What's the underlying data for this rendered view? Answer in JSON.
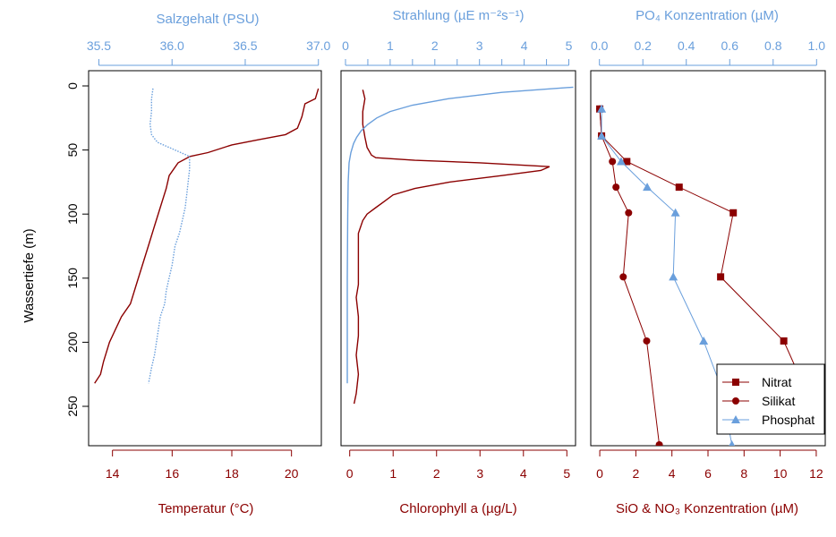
{
  "colors": {
    "red": "#8B0000",
    "blue": "#6A9FDC",
    "black": "#000000"
  },
  "chart_data": [
    {
      "type": "line",
      "panel": "temperature-salinity",
      "ylabel": "Wassertiefe (m)",
      "y_ticks": [
        0,
        50,
        100,
        150,
        200,
        250
      ],
      "ylim": [
        0,
        280
      ],
      "y_reversed": true,
      "bottom_axis": {
        "label": "Temperatur (°C)",
        "range": [
          13.2,
          21.0
        ],
        "ticks": [
          14,
          16,
          18,
          20
        ]
      },
      "top_axis": {
        "label": "Salzgehalt (PSU)",
        "range": [
          35.43,
          37.02
        ],
        "ticks": [
          "35.5",
          "36.0",
          "36.5",
          "37.0"
        ]
      },
      "series": [
        {
          "axis": "bottom",
          "color_key": "red",
          "x": [
            20.9,
            20.8,
            20.45,
            20.35,
            20.2,
            19.8,
            18.9,
            18.0,
            17.2,
            16.6,
            16.2,
            15.9,
            15.8,
            15.6,
            15.4,
            15.2,
            15.0,
            14.8,
            14.6,
            14.3,
            14.1,
            13.9,
            13.7,
            13.6,
            13.4
          ],
          "y": [
            2,
            10,
            14,
            24,
            33,
            38,
            42,
            46,
            52,
            55,
            60,
            70,
            80,
            95,
            110,
            125,
            140,
            155,
            170,
            180,
            190,
            200,
            215,
            225,
            232
          ]
        },
        {
          "axis": "top",
          "color_key": "blue",
          "x": [
            35.87,
            35.86,
            35.86,
            35.85,
            35.86,
            35.9,
            36.02,
            36.12,
            36.12,
            36.11,
            36.1,
            36.09,
            36.07,
            36.05,
            36.02,
            36.0,
            35.98,
            35.96,
            35.95,
            35.92,
            35.9,
            35.88,
            35.86,
            35.84
          ],
          "y": [
            2,
            10,
            20,
            30,
            38,
            44,
            50,
            55,
            65,
            75,
            85,
            95,
            105,
            115,
            125,
            140,
            150,
            160,
            170,
            180,
            195,
            210,
            220,
            232
          ]
        }
      ]
    },
    {
      "type": "line",
      "panel": "chlorophyll-radiation",
      "y_ticks": [
        0,
        50,
        100,
        150,
        200,
        250
      ],
      "ylim": [
        0,
        280
      ],
      "y_reversed": true,
      "bottom_axis": {
        "label": "Chlorophyll a (µg/L)",
        "range": [
          -0.2,
          5.2
        ],
        "ticks": [
          0,
          1,
          2,
          3,
          4,
          5
        ]
      },
      "top_axis": {
        "label": "Strahlung (µE m⁻²s⁻¹)",
        "range": [
          -0.1,
          5.15
        ],
        "ticks": [
          0,
          0.5,
          1,
          1.5,
          2,
          2.5,
          3,
          3.5,
          4,
          4.5,
          5
        ]
      },
      "top_tick_labels_shown": [
        "0",
        "1",
        "2",
        "3",
        "4",
        "5"
      ],
      "series": [
        {
          "axis": "bottom",
          "color_key": "red",
          "x": [
            0.3,
            0.35,
            0.3,
            0.3,
            0.35,
            0.4,
            0.5,
            0.6,
            1.5,
            3.0,
            4.6,
            4.4,
            3.5,
            2.3,
            1.5,
            1.0,
            0.8,
            0.6,
            0.4,
            0.3,
            0.2,
            0.2,
            0.2,
            0.2,
            0.15,
            0.2,
            0.2,
            0.15,
            0.2,
            0.15,
            0.1
          ],
          "y": [
            3,
            10,
            20,
            30,
            40,
            48,
            54,
            56,
            58,
            60,
            63,
            66,
            70,
            75,
            80,
            85,
            90,
            95,
            100,
            105,
            115,
            125,
            140,
            155,
            165,
            180,
            195,
            210,
            225,
            240,
            248
          ]
        },
        {
          "axis": "top",
          "color_key": "blue",
          "x": [
            5.1,
            3.5,
            2.3,
            1.5,
            1.0,
            0.7,
            0.5,
            0.35,
            0.25,
            0.18,
            0.12,
            0.08,
            0.06,
            0.05,
            0.04,
            0.04
          ],
          "y": [
            1,
            5,
            10,
            15,
            20,
            25,
            30,
            35,
            40,
            45,
            52,
            60,
            75,
            100,
            150,
            232
          ]
        }
      ]
    },
    {
      "type": "line",
      "panel": "nutrients",
      "y_ticks": [
        0,
        50,
        100,
        150,
        200,
        250
      ],
      "ylim": [
        0,
        280
      ],
      "y_reversed": true,
      "bottom_axis": {
        "label": "SiO & NO₃ Konzentration (µM)",
        "range": [
          -0.5,
          12.5
        ],
        "ticks": [
          0,
          2,
          4,
          6,
          8,
          10,
          12
        ]
      },
      "top_axis": {
        "label": "PO₄ Konzentration (µM)",
        "range": [
          -0.04,
          1.04
        ],
        "ticks": [
          "0.0",
          "0.2",
          "0.4",
          "0.6",
          "0.8",
          "1.0"
        ]
      },
      "legend": {
        "position": "bottom-right",
        "entries": [
          "Nitrat",
          "Silikat",
          "Phosphat"
        ]
      },
      "series": [
        {
          "name": "Nitrat",
          "axis": "bottom",
          "marker": "square",
          "color_key": "red",
          "x": [
            0.0,
            0.1,
            1.5,
            4.4,
            7.4,
            6.7,
            10.2,
            11.5
          ],
          "y": [
            18,
            39,
            59,
            79,
            99,
            149,
            199,
            240
          ]
        },
        {
          "name": "Silikat",
          "axis": "bottom",
          "marker": "circle",
          "color_key": "red",
          "x": [
            0.0,
            0.1,
            0.7,
            0.9,
            1.6,
            1.3,
            2.6,
            3.3
          ],
          "y": [
            18,
            39,
            59,
            79,
            99,
            149,
            199,
            280
          ]
        },
        {
          "name": "Phosphat",
          "axis": "top",
          "marker": "triangle",
          "color_key": "blue",
          "x": [
            0.01,
            0.01,
            0.1,
            0.22,
            0.35,
            0.34,
            0.48,
            0.56,
            0.61
          ],
          "y": [
            18,
            39,
            59,
            79,
            99,
            149,
            199,
            235,
            280
          ]
        }
      ]
    }
  ]
}
